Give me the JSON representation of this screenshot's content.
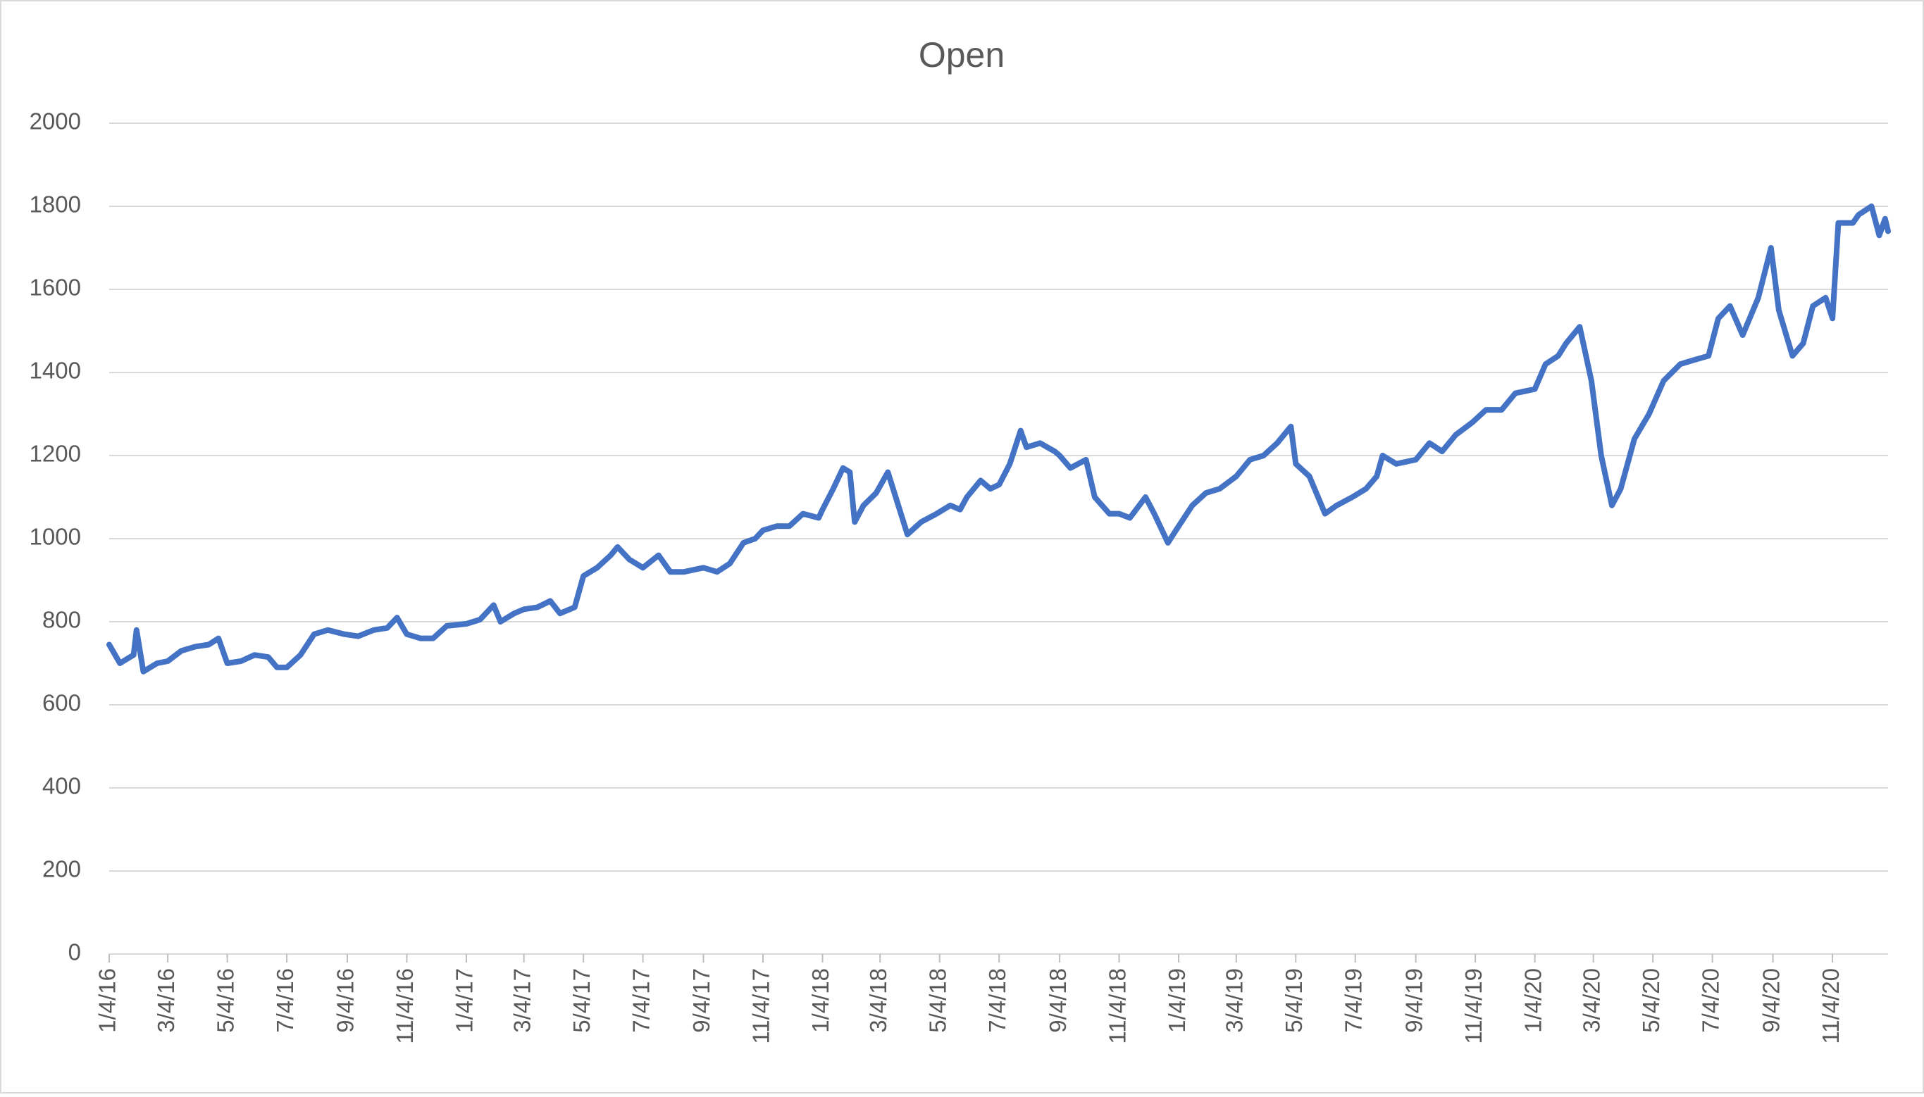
{
  "chart_data": {
    "type": "line",
    "title": "Open",
    "color": "#4472c4",
    "grid": true,
    "ylim": [
      0,
      2000
    ],
    "yticks": [
      0,
      200,
      400,
      600,
      800,
      1000,
      1200,
      1400,
      1600,
      1800,
      2000
    ],
    "xlim": [
      "1/4/16",
      "12/31/20"
    ],
    "xticks": [
      "1/4/16",
      "3/4/16",
      "5/4/16",
      "7/4/16",
      "9/4/16",
      "11/4/16",
      "1/4/17",
      "3/4/17",
      "5/4/17",
      "7/4/17",
      "9/4/17",
      "11/4/17",
      "1/4/18",
      "3/4/18",
      "5/4/18",
      "7/4/18",
      "9/4/18",
      "11/4/18",
      "1/4/19",
      "3/4/19",
      "5/4/19",
      "7/4/19",
      "9/4/19",
      "11/4/19",
      "1/4/20",
      "3/4/20",
      "5/4/20",
      "7/4/20",
      "9/4/20",
      "11/4/20"
    ],
    "x": [
      "1/4/16",
      "1/15/16",
      "1/29/16",
      "2/1/16",
      "2/8/16",
      "2/22/16",
      "3/4/16",
      "3/18/16",
      "4/1/16",
      "4/15/16",
      "4/25/16",
      "5/4/16",
      "5/18/16",
      "6/1/16",
      "6/15/16",
      "6/24/16",
      "7/4/16",
      "7/18/16",
      "8/1/16",
      "8/15/16",
      "9/1/16",
      "9/15/16",
      "10/1/16",
      "10/15/16",
      "10/25/16",
      "11/4/16",
      "11/18/16",
      "12/1/16",
      "12/15/16",
      "1/4/17",
      "1/18/17",
      "2/1/17",
      "2/8/17",
      "2/22/17",
      "3/4/17",
      "3/18/17",
      "3/31/17",
      "4/10/17",
      "4/25/17",
      "5/4/17",
      "5/18/17",
      "6/1/17",
      "6/8/17",
      "6/20/17",
      "7/4/17",
      "7/20/17",
      "8/1/17",
      "8/15/17",
      "9/4/17",
      "9/18/17",
      "10/1/17",
      "10/15/17",
      "10/27/17",
      "11/4/17",
      "11/18/17",
      "12/1/17",
      "12/15/17",
      "12/31/17",
      "1/4/18",
      "1/15/18",
      "1/25/18",
      "2/1/18",
      "2/6/18",
      "2/15/18",
      "2/28/18",
      "3/12/18",
      "3/20/18",
      "4/1/18",
      "4/15/18",
      "5/1/18",
      "5/15/18",
      "5/25/18",
      "6/1/18",
      "6/15/18",
      "6/25/18",
      "7/4/18",
      "7/15/18",
      "7/26/18",
      "8/1/18",
      "8/15/18",
      "8/30/18",
      "9/4/18",
      "9/15/18",
      "10/1/18",
      "10/10/18",
      "10/25/18",
      "11/4/18",
      "11/15/18",
      "12/1/18",
      "12/10/18",
      "12/24/18",
      "1/4/19",
      "1/18/19",
      "2/1/19",
      "2/15/19",
      "3/4/19",
      "3/18/19",
      "4/1/19",
      "4/15/19",
      "4/29/19",
      "5/4/19",
      "5/18/19",
      "6/3/19",
      "6/15/19",
      "7/1/19",
      "7/15/19",
      "7/26/19",
      "8/1/19",
      "8/15/19",
      "9/4/19",
      "9/18/19",
      "10/1/19",
      "10/15/19",
      "11/1/19",
      "11/15/19",
      "12/1/19",
      "12/15/19",
      "1/4/20",
      "1/15/20",
      "1/28/20",
      "2/5/20",
      "2/19/20",
      "3/2/20",
      "3/12/20",
      "3/23/20",
      "4/1/20",
      "4/15/20",
      "4/30/20",
      "5/15/20",
      "6/1/20",
      "6/15/20",
      "6/30/20",
      "7/10/20",
      "7/22/20",
      "8/4/20",
      "8/20/20",
      "9/2/20",
      "9/10/20",
      "9/24/20",
      "10/5/20",
      "10/15/20",
      "10/28/20",
      "11/4/20",
      "11/10/20",
      "11/25/20",
      "12/1/20",
      "12/14/20",
      "12/22/20",
      "12/28/20",
      "12/31/20"
    ],
    "values": [
      745,
      700,
      720,
      780,
      680,
      700,
      705,
      730,
      740,
      745,
      760,
      700,
      705,
      720,
      715,
      690,
      690,
      720,
      770,
      780,
      770,
      765,
      780,
      785,
      810,
      770,
      760,
      760,
      790,
      795,
      805,
      840,
      800,
      820,
      830,
      835,
      850,
      820,
      835,
      910,
      930,
      960,
      980,
      950,
      930,
      960,
      920,
      920,
      930,
      920,
      940,
      990,
      1000,
      1020,
      1030,
      1030,
      1060,
      1050,
      1070,
      1120,
      1170,
      1160,
      1040,
      1080,
      1110,
      1160,
      1100,
      1010,
      1040,
      1060,
      1080,
      1070,
      1100,
      1140,
      1120,
      1130,
      1180,
      1260,
      1220,
      1230,
      1210,
      1200,
      1170,
      1190,
      1100,
      1060,
      1060,
      1050,
      1100,
      1060,
      990,
      1030,
      1080,
      1110,
      1120,
      1150,
      1190,
      1200,
      1230,
      1270,
      1180,
      1150,
      1060,
      1080,
      1100,
      1120,
      1150,
      1200,
      1180,
      1190,
      1230,
      1210,
      1250,
      1280,
      1310,
      1310,
      1350,
      1360,
      1420,
      1440,
      1470,
      1510,
      1380,
      1200,
      1080,
      1120,
      1240,
      1300,
      1380,
      1420,
      1430,
      1440,
      1530,
      1560,
      1490,
      1580,
      1700,
      1550,
      1440,
      1470,
      1560,
      1580,
      1530,
      1760,
      1760,
      1780,
      1800,
      1730,
      1770,
      1740
    ]
  }
}
